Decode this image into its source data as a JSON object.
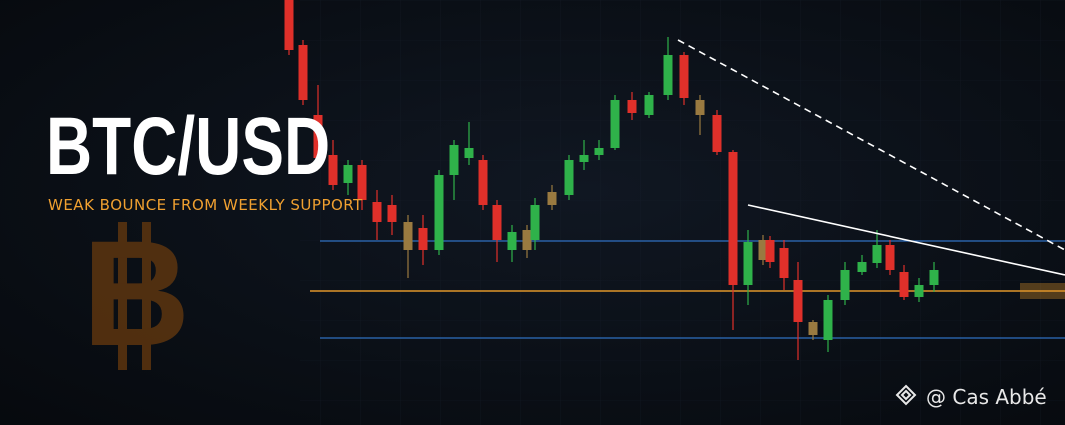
{
  "banner": {
    "title": "BTC/USD",
    "subtitle": "WEAK BOUNCE FROM WEEKLY SUPPORT",
    "credit": "@ Cas Abbé"
  }
}
